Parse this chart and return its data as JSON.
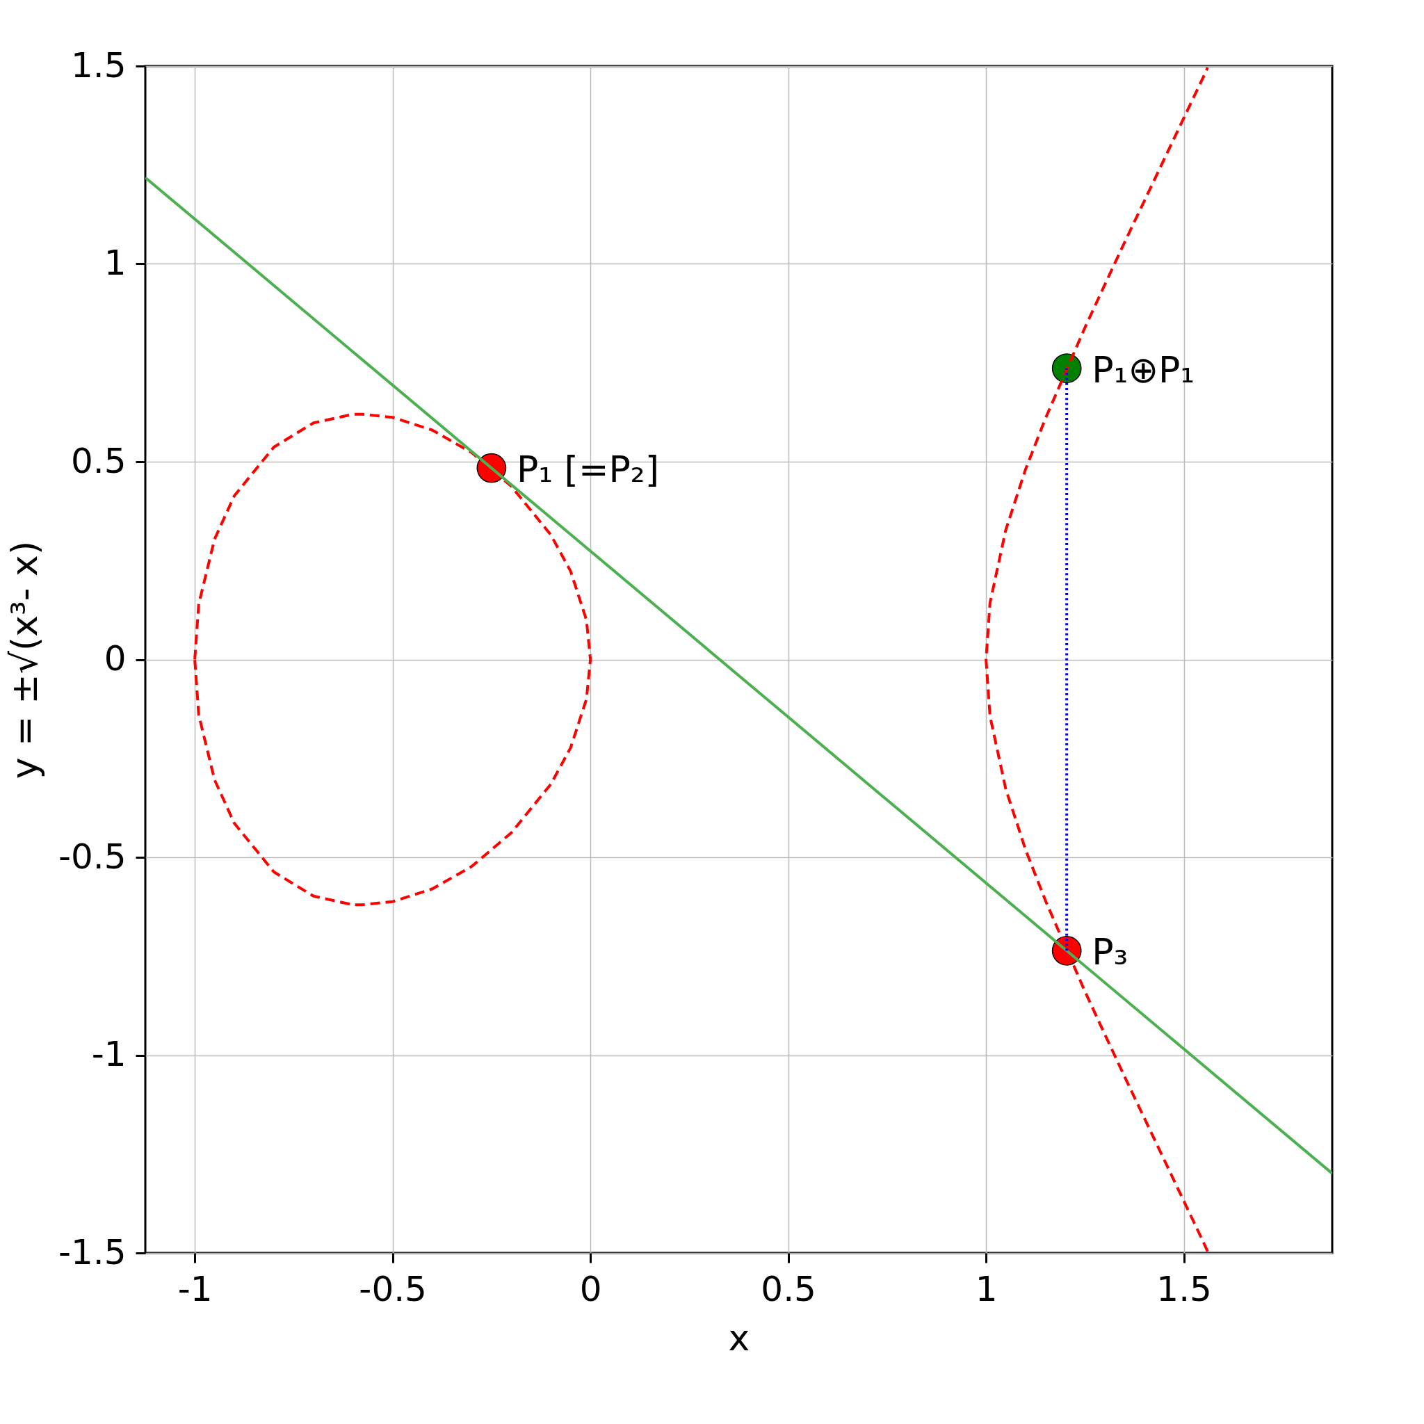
{
  "chart_data": {
    "type": "line",
    "xlabel": "x",
    "ylabel": "y = ±√(x³- x)",
    "xlim": [
      -1.125,
      1.875
    ],
    "ylim": [
      -1.5,
      1.5
    ],
    "xticks": [
      -1,
      -0.5,
      0,
      0.5,
      1,
      1.5
    ],
    "yticks": [
      -1.5,
      -1,
      -0.5,
      0,
      0.5,
      1,
      1.5
    ],
    "grid": true,
    "series": [
      {
        "color": "#ff0000",
        "line_style": "dashed",
        "x": [
          1.56,
          1.55,
          1.5,
          1.45,
          1.4,
          1.35,
          1.3,
          1.25,
          1.15,
          1.1,
          1.05,
          1.01,
          1,
          1.01,
          1.05,
          1.1,
          1.15,
          1.25,
          1.3,
          1.35,
          1.4,
          1.45,
          1.5,
          1.55,
          1.56
        ],
        "values": [
          -1.496,
          -1.474,
          -1.369,
          -1.264,
          -1.159,
          -1.054,
          -0.947,
          -0.839,
          -0.609,
          -0.481,
          -0.328,
          -0.143,
          0,
          0.143,
          0.328,
          0.481,
          0.609,
          0.839,
          0.947,
          1.054,
          1.159,
          1.264,
          1.369,
          1.474,
          1.496
        ]
      },
      {
        "color": "#4caf50",
        "line_style": "solid",
        "x": [
          -1.125,
          1.875
        ],
        "values": [
          1.218,
          -1.299
        ]
      },
      {
        "color": "#0000ff",
        "line_style": "dotted",
        "x": [
          1.204,
          1.204
        ],
        "values": [
          -0.736,
          0.736
        ]
      },
      {
        "type": "scatter",
        "color": "#ff0000",
        "marker": "circle",
        "x": [
          -0.25,
          1.204
        ],
        "values": [
          0.484,
          -0.736
        ]
      },
      {
        "type": "scatter",
        "color": "#008000",
        "marker": "circle",
        "x": [
          1.204
        ],
        "values": [
          0.736
        ]
      }
    ],
    "annotations": [
      "P₁ [=P₂]",
      "P₃",
      "P₁⊕P₁"
    ]
  }
}
